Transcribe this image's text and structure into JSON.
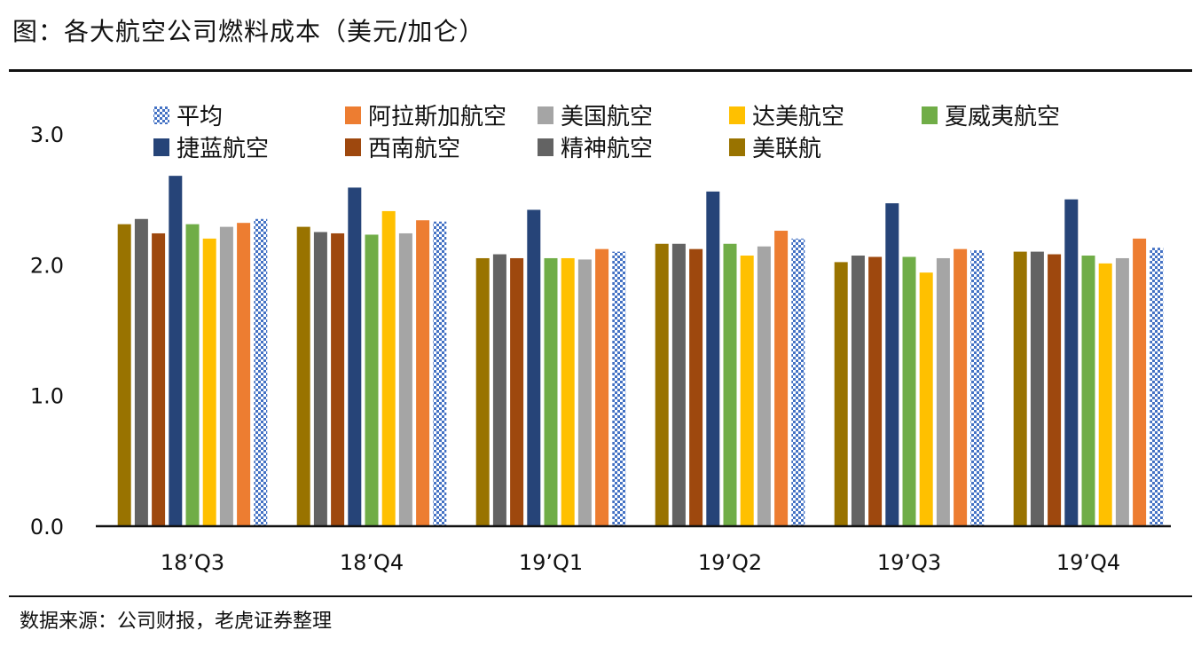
{
  "title": "图：各大航空公司燃料成本（美元/加仑）",
  "source": "数据来源：公司财报，老虎证券整理",
  "colors": {
    "average": "#4472c4",
    "alaska": "#ed7d31",
    "american": "#a5a5a5",
    "delta": "#ffc000",
    "hawaiian": "#70ad47",
    "jetblue": "#264478",
    "southwest": "#9e480e",
    "spirit": "#636363",
    "united": "#997300"
  },
  "chart_data": {
    "type": "bar",
    "ylim": [
      0,
      3.0
    ],
    "yticks": [
      "0.0",
      "1.0",
      "2.0",
      "3.0"
    ],
    "categories": [
      "18’Q3",
      "18’Q4",
      "19’Q1",
      "19’Q2",
      "19’Q3",
      "19’Q4"
    ],
    "legend": {
      "row1": [
        "平均",
        "阿拉斯加航空",
        "美国航空",
        "达美航空",
        "夏威夷航空"
      ],
      "row2": [
        "捷蓝航空",
        "西南航空",
        "精神航空",
        "美联航"
      ]
    },
    "series": [
      {
        "name": "美联航",
        "key": "united",
        "values": [
          2.31,
          2.29,
          2.05,
          2.16,
          2.02,
          2.1
        ]
      },
      {
        "name": "精神航空",
        "key": "spirit",
        "values": [
          2.35,
          2.25,
          2.08,
          2.16,
          2.07,
          2.1
        ]
      },
      {
        "name": "西南航空",
        "key": "southwest",
        "values": [
          2.24,
          2.24,
          2.05,
          2.12,
          2.06,
          2.08
        ]
      },
      {
        "name": "捷蓝航空",
        "key": "jetblue",
        "values": [
          2.68,
          2.59,
          2.42,
          2.56,
          2.47,
          2.5
        ]
      },
      {
        "name": "夏威夷航空",
        "key": "hawaiian",
        "values": [
          2.31,
          2.23,
          2.05,
          2.16,
          2.06,
          2.07
        ]
      },
      {
        "name": "达美航空",
        "key": "delta",
        "values": [
          2.2,
          2.41,
          2.05,
          2.07,
          1.94,
          2.01
        ]
      },
      {
        "name": "美国航空",
        "key": "american",
        "values": [
          2.29,
          2.24,
          2.04,
          2.14,
          2.05,
          2.05
        ]
      },
      {
        "name": "阿拉斯加航空",
        "key": "alaska",
        "values": [
          2.32,
          2.34,
          2.12,
          2.26,
          2.12,
          2.2
        ]
      },
      {
        "name": "平均",
        "key": "average",
        "values": [
          2.35,
          2.33,
          2.1,
          2.2,
          2.11,
          2.13
        ]
      }
    ]
  }
}
